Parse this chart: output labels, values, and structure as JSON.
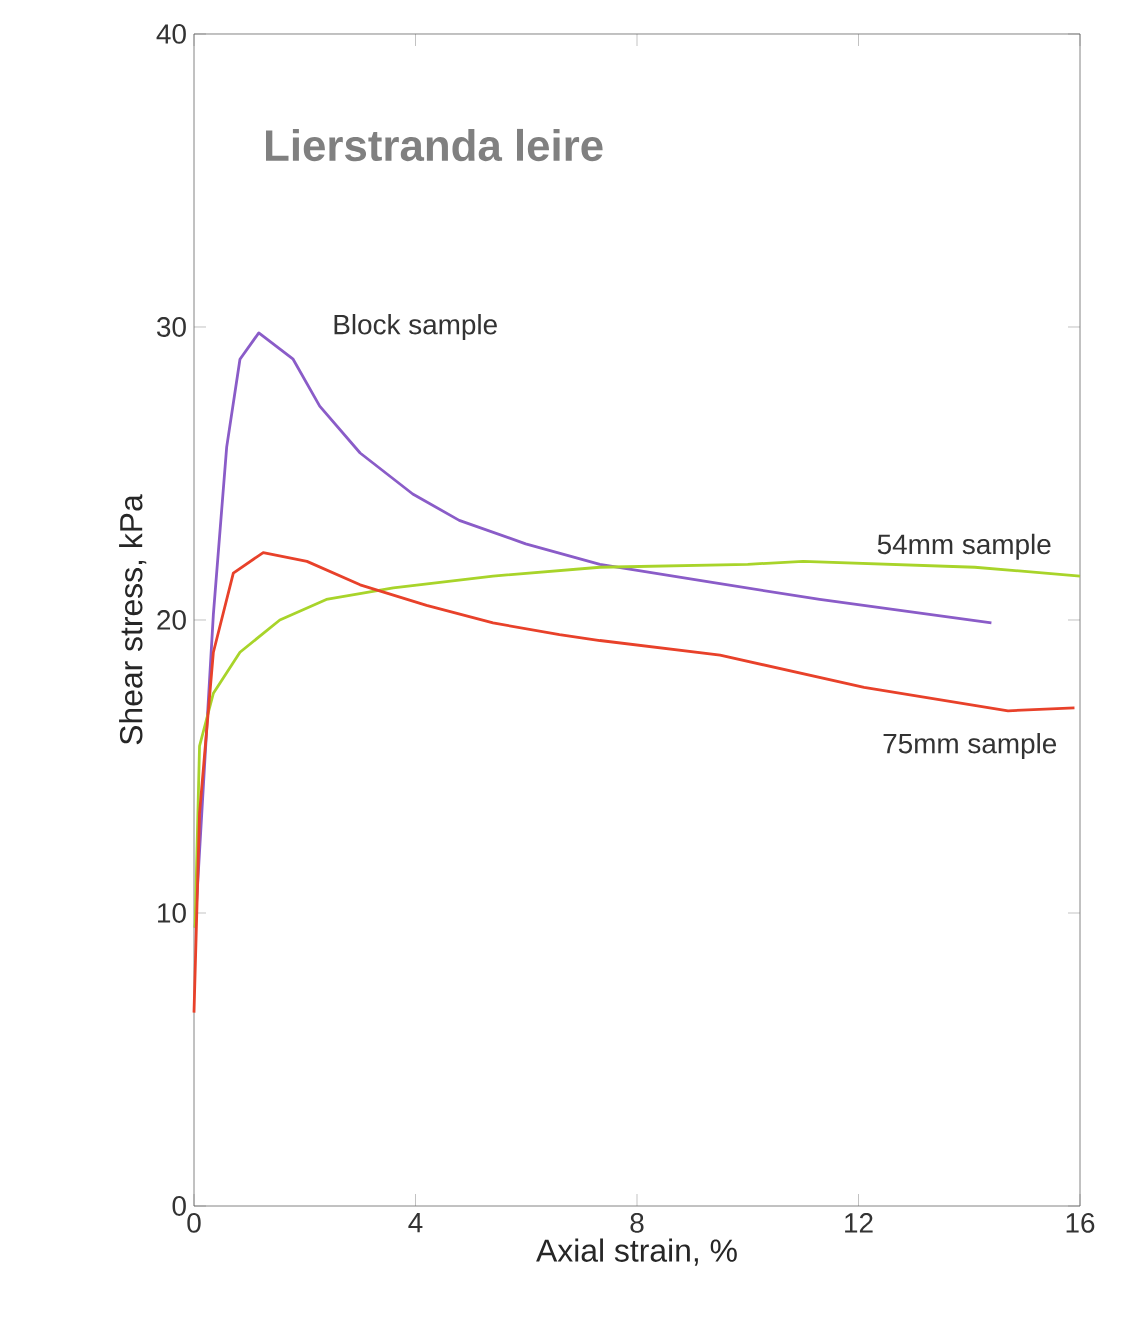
{
  "chart_data": {
    "type": "line",
    "title": "Lierstranda leire",
    "xlabel": "Axial strain,  %",
    "ylabel": "Shear stress, kPa",
    "xlim": [
      0,
      16
    ],
    "ylim": [
      0,
      40
    ],
    "xticks": [
      0,
      4,
      8,
      12,
      16
    ],
    "yticks": [
      0,
      10,
      20,
      30,
      40
    ],
    "grid": false,
    "legend": false,
    "marker": "none",
    "line_style": "solid",
    "series": [
      {
        "name": "Block sample",
        "color": "#8a5cc8",
        "x": [
          0.02,
          0.1,
          0.35,
          0.59,
          0.83,
          1.17,
          1.79,
          2.27,
          3.0,
          3.95,
          4.79,
          5.99,
          7.33,
          9.3,
          11.3,
          14.4
        ],
        "values": [
          9.5,
          null,
          20.2,
          25.9,
          28.9,
          29.8,
          28.9,
          27.3,
          25.7,
          24.3,
          23.4,
          22.6,
          21.9,
          21.3,
          20.7,
          19.9
        ]
      },
      {
        "name": "54mm sample",
        "color": "#a8d42a",
        "x": [
          0.02,
          0.1,
          0.35,
          0.83,
          1.55,
          2.39,
          3.6,
          5.4,
          7.33,
          10.0,
          11.0,
          14.1,
          16.0
        ],
        "values": [
          9.5,
          15.7,
          17.5,
          18.9,
          20.0,
          20.7,
          21.1,
          21.5,
          21.8,
          21.9,
          22.0,
          21.8,
          21.5
        ]
      },
      {
        "name": "75mm sample",
        "color": "#e8412a",
        "x": [
          0.0,
          0.1,
          0.35,
          0.71,
          1.25,
          2.04,
          3.0,
          4.2,
          5.4,
          6.6,
          7.33,
          9.5,
          12.1,
          14.7,
          15.9
        ],
        "values": [
          6.6,
          13.4,
          18.9,
          21.6,
          22.3,
          22.0,
          21.2,
          20.5,
          19.9,
          19.5,
          19.3,
          18.8,
          17.7,
          16.9,
          17.0
        ]
      }
    ]
  }
}
